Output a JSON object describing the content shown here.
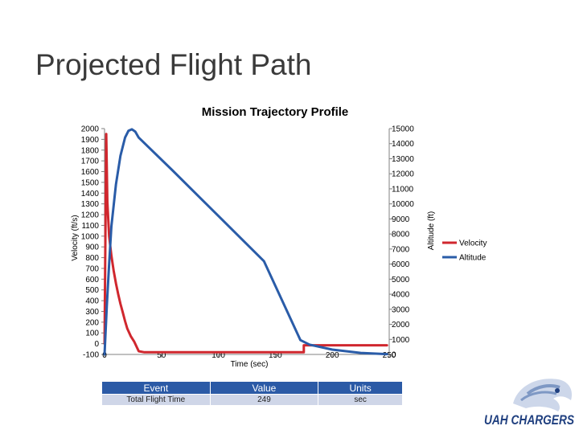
{
  "slide": {
    "title": "Projected Flight Path"
  },
  "chart_data": {
    "type": "line",
    "title": "Mission Trajectory Profile",
    "xlabel": "Time (sec)",
    "ylabel": "Velocity (ft/s)",
    "y2label": "Altitude (ft)",
    "xlim": [
      0,
      250
    ],
    "ylim": [
      -100,
      2000
    ],
    "y2lim": [
      0,
      15000
    ],
    "x_ticks": [
      "0",
      "50",
      "100",
      "150",
      "200",
      "250"
    ],
    "y_ticks": [
      "-100",
      "0",
      "100",
      "200",
      "300",
      "400",
      "500",
      "600",
      "700",
      "800",
      "900",
      "1000",
      "1100",
      "1200",
      "1300",
      "1400",
      "1500",
      "1600",
      "1700",
      "1800",
      "1900",
      "2000"
    ],
    "y2_ticks": [
      "0",
      "1000",
      "2000",
      "3000",
      "4000",
      "5000",
      "6000",
      "7000",
      "8000",
      "9000",
      "10000",
      "11000",
      "12000",
      "13000",
      "14000",
      "15000"
    ],
    "legend_position": "right",
    "grid": false,
    "series": [
      {
        "name": "Velocity",
        "axis": "left",
        "color": "#d0272e",
        "points": [
          [
            0,
            0
          ],
          [
            1.5,
            1950
          ],
          [
            2.5,
            1320
          ],
          [
            4,
            1000
          ],
          [
            6,
            820
          ],
          [
            8,
            680
          ],
          [
            10,
            560
          ],
          [
            12,
            460
          ],
          [
            14,
            370
          ],
          [
            16,
            290
          ],
          [
            18,
            210
          ],
          [
            20,
            140
          ],
          [
            23,
            70
          ],
          [
            26,
            20
          ],
          [
            30,
            -70
          ],
          [
            35,
            -80
          ],
          [
            175,
            -80
          ],
          [
            175,
            -15
          ],
          [
            176,
            -15
          ],
          [
            248,
            -15
          ]
        ]
      },
      {
        "name": "Altitude",
        "axis": "right",
        "color": "#2a5ca8",
        "points": [
          [
            0,
            0
          ],
          [
            2,
            3200
          ],
          [
            4,
            6000
          ],
          [
            6,
            8500
          ],
          [
            10,
            11300
          ],
          [
            14,
            13200
          ],
          [
            18,
            14400
          ],
          [
            21,
            14850
          ],
          [
            24,
            14950
          ],
          [
            27,
            14800
          ],
          [
            30,
            14400
          ],
          [
            60,
            12200
          ],
          [
            100,
            9200
          ],
          [
            140,
            6200
          ],
          [
            172,
            950
          ],
          [
            180,
            650
          ],
          [
            200,
            320
          ],
          [
            225,
            100
          ],
          [
            248,
            20
          ]
        ]
      }
    ]
  },
  "table": {
    "headers": [
      "Event",
      "Value",
      "Units"
    ],
    "rows": [
      [
        "Total Flight Time",
        "249",
        "sec"
      ]
    ]
  },
  "logo": {
    "text": "UAH CHARGERS",
    "primary_color": "#1f3f7f",
    "light_color": "#7e98c4"
  }
}
